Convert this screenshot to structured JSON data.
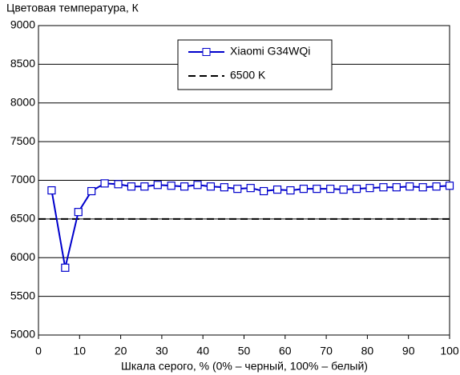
{
  "chart_data": {
    "type": "line",
    "title": "Цветовая температура, К",
    "x_label": "Шкала серого, % (0% – черный, 100% – белый)",
    "x": [
      3.2,
      6.5,
      9.7,
      12.9,
      16.1,
      19.4,
      22.6,
      25.8,
      29.0,
      32.3,
      35.5,
      38.7,
      41.9,
      45.2,
      48.4,
      51.6,
      54.8,
      58.1,
      61.3,
      64.5,
      67.7,
      71.0,
      74.2,
      77.4,
      80.6,
      83.9,
      87.1,
      90.3,
      93.5,
      96.8,
      100
    ],
    "series": [
      {
        "name": "Xiaomi G34WQi",
        "color": "#0000cc",
        "values": [
          6870,
          5870,
          6590,
          6860,
          6960,
          6950,
          6920,
          6920,
          6940,
          6930,
          6920,
          6940,
          6920,
          6910,
          6890,
          6900,
          6860,
          6880,
          6870,
          6890,
          6890,
          6890,
          6880,
          6890,
          6900,
          6910,
          6910,
          6920,
          6910,
          6920,
          6930
        ]
      }
    ],
    "reference_lines": [
      {
        "name": "6500 K",
        "value": 6500,
        "color": "#000000"
      }
    ],
    "xlim": [
      0,
      100
    ],
    "xticks": [
      0,
      10,
      20,
      30,
      40,
      50,
      60,
      70,
      80,
      90,
      100
    ],
    "ylim": [
      5000,
      9000
    ],
    "yticks": [
      5000,
      5500,
      6000,
      6500,
      7000,
      7500,
      8000,
      8500,
      9000
    ],
    "grid": true,
    "legend": "top"
  }
}
